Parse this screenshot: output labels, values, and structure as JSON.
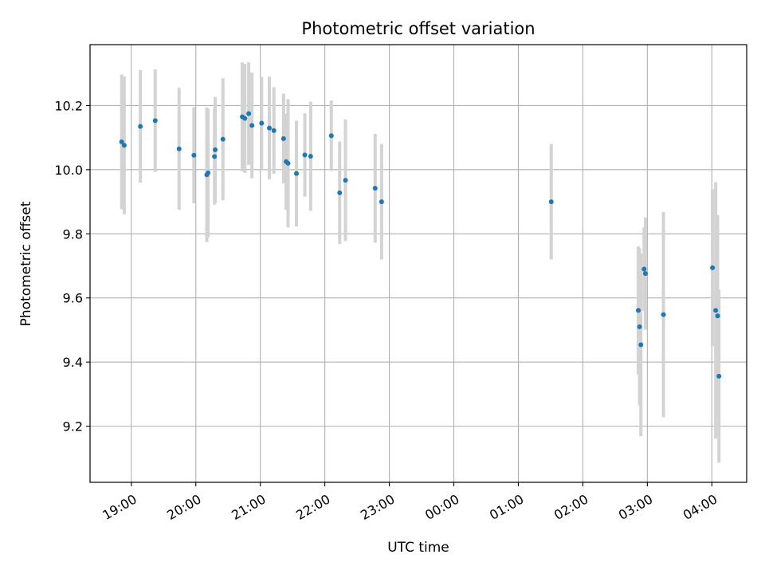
{
  "chart_data": {
    "type": "scatter",
    "title": "Photometric offset variation",
    "xlabel": "UTC time",
    "ylabel": "Photometric offset",
    "x_unit": "hours after 18:00 UTC",
    "xlim": [
      0.36,
      10.54
    ],
    "ylim": [
      9.025,
      10.39
    ],
    "grid": true,
    "x_tick_values": [
      1,
      2,
      3,
      4,
      5,
      6,
      7,
      8,
      9,
      10
    ],
    "x_tick_labels": [
      "19:00",
      "20:00",
      "21:00",
      "22:00",
      "23:00",
      "00:00",
      "01:00",
      "02:00",
      "03:00",
      "04:00"
    ],
    "y_tick_values": [
      9.2,
      9.4,
      9.6,
      9.8,
      10.0,
      10.2
    ],
    "y_tick_labels": [
      "9.2",
      "9.4",
      "9.6",
      "9.8",
      "10.0",
      "10.2"
    ],
    "marker_color": "#1f77b4",
    "errorbar_color": "#d3d3d3",
    "points": [
      {
        "x": 0.85,
        "y": 10.087,
        "err": 0.21
      },
      {
        "x": 0.89,
        "y": 10.076,
        "err": 0.215
      },
      {
        "x": 1.14,
        "y": 10.135,
        "err": 0.175
      },
      {
        "x": 1.37,
        "y": 10.153,
        "err": 0.16
      },
      {
        "x": 1.74,
        "y": 10.065,
        "err": 0.19
      },
      {
        "x": 1.97,
        "y": 10.045,
        "err": 0.15
      },
      {
        "x": 2.17,
        "y": 9.984,
        "err": 0.21
      },
      {
        "x": 2.19,
        "y": 9.99,
        "err": 0.2
      },
      {
        "x": 2.29,
        "y": 10.041,
        "err": 0.15
      },
      {
        "x": 2.3,
        "y": 10.062,
        "err": 0.165
      },
      {
        "x": 2.42,
        "y": 10.095,
        "err": 0.19
      },
      {
        "x": 2.72,
        "y": 10.165,
        "err": 0.17
      },
      {
        "x": 2.76,
        "y": 10.16,
        "err": 0.17
      },
      {
        "x": 2.82,
        "y": 10.175,
        "err": 0.16
      },
      {
        "x": 2.87,
        "y": 10.138,
        "err": 0.165
      },
      {
        "x": 3.02,
        "y": 10.145,
        "err": 0.145
      },
      {
        "x": 3.14,
        "y": 10.13,
        "err": 0.16
      },
      {
        "x": 3.21,
        "y": 10.122,
        "err": 0.135
      },
      {
        "x": 3.36,
        "y": 10.097,
        "err": 0.14
      },
      {
        "x": 3.4,
        "y": 10.025,
        "err": 0.15
      },
      {
        "x": 3.43,
        "y": 10.02,
        "err": 0.2
      },
      {
        "x": 3.56,
        "y": 9.988,
        "err": 0.165
      },
      {
        "x": 3.69,
        "y": 10.046,
        "err": 0.13
      },
      {
        "x": 3.78,
        "y": 10.042,
        "err": 0.17
      },
      {
        "x": 4.1,
        "y": 10.106,
        "err": 0.11
      },
      {
        "x": 4.23,
        "y": 9.928,
        "err": 0.16
      },
      {
        "x": 4.32,
        "y": 9.967,
        "err": 0.19
      },
      {
        "x": 4.78,
        "y": 9.942,
        "err": 0.17
      },
      {
        "x": 4.88,
        "y": 9.9,
        "err": 0.18
      },
      {
        "x": 7.51,
        "y": 9.9,
        "err": 0.18
      },
      {
        "x": 8.86,
        "y": 9.561,
        "err": 0.2
      },
      {
        "x": 8.88,
        "y": 9.51,
        "err": 0.245
      },
      {
        "x": 8.9,
        "y": 9.454,
        "err": 0.285
      },
      {
        "x": 8.95,
        "y": 9.69,
        "err": 0.13
      },
      {
        "x": 8.97,
        "y": 9.676,
        "err": 0.175
      },
      {
        "x": 9.25,
        "y": 9.548,
        "err": 0.32
      },
      {
        "x": 10.01,
        "y": 9.694,
        "err": 0.245
      },
      {
        "x": 10.06,
        "y": 9.561,
        "err": 0.4
      },
      {
        "x": 10.09,
        "y": 9.544,
        "err": 0.315
      },
      {
        "x": 10.11,
        "y": 9.356,
        "err": 0.27
      }
    ]
  }
}
